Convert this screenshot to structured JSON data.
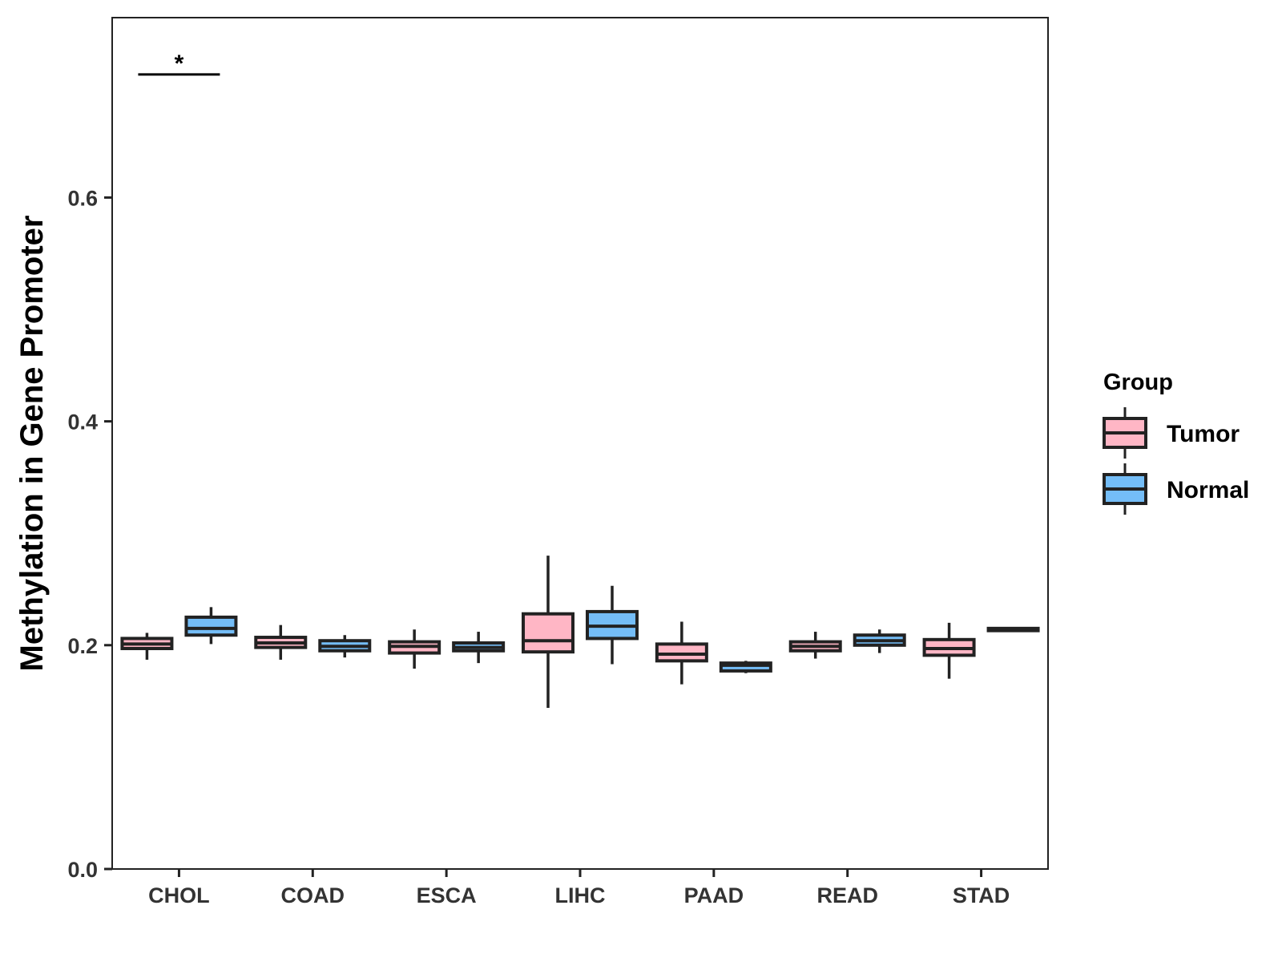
{
  "chart_data": {
    "type": "boxplot",
    "title": "",
    "xlabel": "",
    "ylabel": "Methylation in Gene Promoter",
    "ylim": [
      0.0,
      0.76
    ],
    "yticks": [
      0.0,
      0.2,
      0.4,
      0.6
    ],
    "ytick_labels": [
      "0.0",
      "0.2",
      "0.4",
      "0.6"
    ],
    "categories": [
      "CHOL",
      "COAD",
      "ESCA",
      "LIHC",
      "PAAD",
      "READ",
      "STAD"
    ],
    "legend": {
      "title": "Group",
      "position": "right",
      "entries": [
        {
          "name": "Tumor",
          "color": "#FFB6C5"
        },
        {
          "name": "Normal",
          "color": "#74BDF7"
        }
      ]
    },
    "series": [
      {
        "name": "Tumor",
        "color": "#FFB6C5",
        "boxes": [
          {
            "category": "CHOL",
            "min": 0.187,
            "q1": 0.197,
            "median": 0.201,
            "q3": 0.206,
            "max": 0.211
          },
          {
            "category": "COAD",
            "min": 0.187,
            "q1": 0.198,
            "median": 0.202,
            "q3": 0.207,
            "max": 0.218
          },
          {
            "category": "ESCA",
            "min": 0.179,
            "q1": 0.193,
            "median": 0.199,
            "q3": 0.203,
            "max": 0.214
          },
          {
            "category": "LIHC",
            "min": 0.144,
            "q1": 0.194,
            "median": 0.204,
            "q3": 0.228,
            "max": 0.28
          },
          {
            "category": "PAAD",
            "min": 0.165,
            "q1": 0.186,
            "median": 0.192,
            "q3": 0.201,
            "max": 0.221
          },
          {
            "category": "READ",
            "min": 0.188,
            "q1": 0.195,
            "median": 0.199,
            "q3": 0.203,
            "max": 0.212
          },
          {
            "category": "STAD",
            "min": 0.17,
            "q1": 0.191,
            "median": 0.197,
            "q3": 0.205,
            "max": 0.22
          }
        ]
      },
      {
        "name": "Normal",
        "color": "#74BDF7",
        "boxes": [
          {
            "category": "CHOL",
            "min": 0.201,
            "q1": 0.209,
            "median": 0.215,
            "q3": 0.225,
            "max": 0.234
          },
          {
            "category": "COAD",
            "min": 0.189,
            "q1": 0.195,
            "median": 0.199,
            "q3": 0.204,
            "max": 0.209
          },
          {
            "category": "ESCA",
            "min": 0.184,
            "q1": 0.195,
            "median": 0.198,
            "q3": 0.202,
            "max": 0.212
          },
          {
            "category": "LIHC",
            "min": 0.183,
            "q1": 0.206,
            "median": 0.217,
            "q3": 0.23,
            "max": 0.253
          },
          {
            "category": "PAAD",
            "min": 0.175,
            "q1": 0.177,
            "median": 0.182,
            "q3": 0.184,
            "max": 0.186
          },
          {
            "category": "READ",
            "min": 0.193,
            "q1": 0.2,
            "median": 0.204,
            "q3": 0.209,
            "max": 0.214
          },
          {
            "category": "STAD",
            "min": 0.212,
            "q1": 0.213,
            "median": 0.214,
            "q3": 0.215,
            "max": 0.216
          }
        ]
      }
    ],
    "annotations": [
      {
        "category": "CHOL",
        "text": "*",
        "y": 0.71
      }
    ]
  }
}
